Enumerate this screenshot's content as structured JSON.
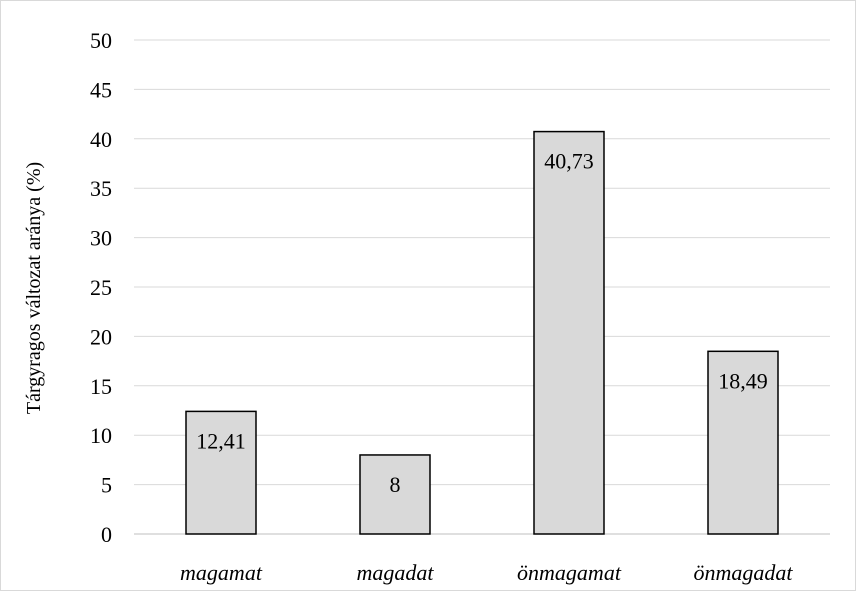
{
  "chart_data": {
    "type": "bar",
    "categories": [
      "magamat",
      "magadat",
      "önmagamat",
      "önmagadat"
    ],
    "values": [
      12.41,
      8,
      40.73,
      18.49
    ],
    "data_labels": [
      "12,41",
      "8",
      "40,73",
      "18,49"
    ],
    "ylabel": "Tárgyragos változat aránya (%)",
    "xlabel": "",
    "ylim": [
      0,
      50
    ],
    "yticks": [
      0,
      5,
      10,
      15,
      20,
      25,
      30,
      35,
      40,
      45,
      50
    ],
    "grid": true,
    "legend": "none",
    "colors": {
      "bar_fill": "#d9d9d9",
      "bar_stroke": "#000000",
      "grid": "#d9d9d9",
      "frame": "#d9d9d9"
    }
  }
}
